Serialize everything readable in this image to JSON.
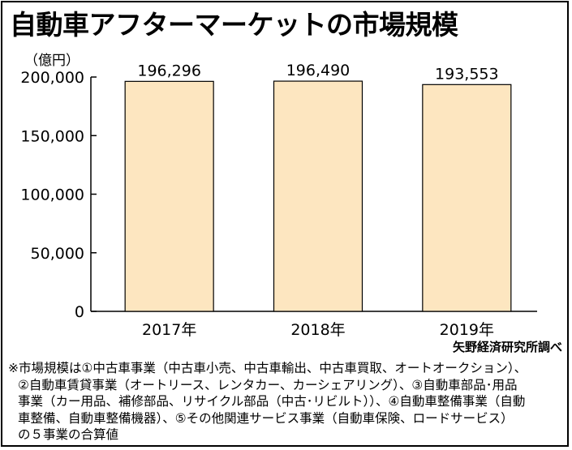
{
  "chart_data": {
    "type": "bar",
    "title": "自動車アフターマーケットの市場規模",
    "unit_label": "（億円）",
    "categories": [
      "2017年",
      "2018年",
      "2019年"
    ],
    "values": [
      196296,
      196490,
      193553
    ],
    "value_labels": [
      "196,296",
      "196,490",
      "193,553"
    ],
    "yticks": [
      0,
      50000,
      100000,
      150000,
      200000
    ],
    "ytick_labels": [
      "0",
      "50,000",
      "100,000",
      "150,000",
      "200,000"
    ],
    "ylim": [
      0,
      200000
    ],
    "bar_color": "#fde6c0",
    "grid": false,
    "legend": "none"
  },
  "source": "矢野経済研究所調べ",
  "note": [
    "※市場規模は①中古車事業（中古車小売、中古車輸出、中古車買取、オートオークション）、",
    "②自動車賃貸事業（オートリース、レンタカー、カーシェアリング）、③自動車部品･用品",
    "事業（カー用品、補修部品、リサイクル部品（中古･リビルト））、④自動車整備事業（自動",
    "車整備、自動車整備機器）、⑤その他関連サービス事業（自動車保険、ロードサービス）",
    "の５事業の合算値"
  ]
}
